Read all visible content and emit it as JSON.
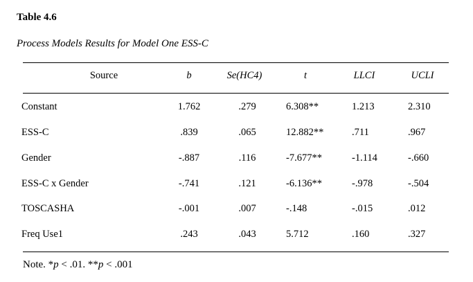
{
  "table_number": "Table 4.6",
  "table_title": "Process Models Results for Model One ESS-C",
  "columns": {
    "source": "Source",
    "b": "b",
    "se": "Se(HC4)",
    "t": "t",
    "llci": "LLCI",
    "ucli": "UCLI"
  },
  "rows": [
    {
      "source": "Constant",
      "b": "1.762",
      "se": ".279",
      "t": "6.308**",
      "llci": "1.213",
      "ucli": "2.310"
    },
    {
      "source": "ESS-C",
      "b": ".839",
      "se": ".065",
      "t": "12.882**",
      "llci": ".711",
      "ucli": ".967"
    },
    {
      "source": "Gender",
      "b": "-.887",
      "se": ".116",
      "t": "-7.677**",
      "llci": "-1.114",
      "ucli": "-.660"
    },
    {
      "source": "ESS-C x Gender",
      "b": "-.741",
      "se": ".121",
      "t": "-6.136**",
      "llci": "-.978",
      "ucli": "-.504"
    },
    {
      "source": "TOSCASHA",
      "b": "-.001",
      "se": ".007",
      "t": "-.148",
      "llci": "-.015",
      "ucli": ".012"
    },
    {
      "source": "Freq Use1",
      "b": ".243",
      "se": ".043",
      "t": "5.712",
      "llci": ".160",
      "ucli": ".327"
    }
  ],
  "note": {
    "prefix": "Note. *",
    "p1": "p",
    "mid": " < .01. **",
    "p2": "p",
    "suffix": " < .001"
  }
}
